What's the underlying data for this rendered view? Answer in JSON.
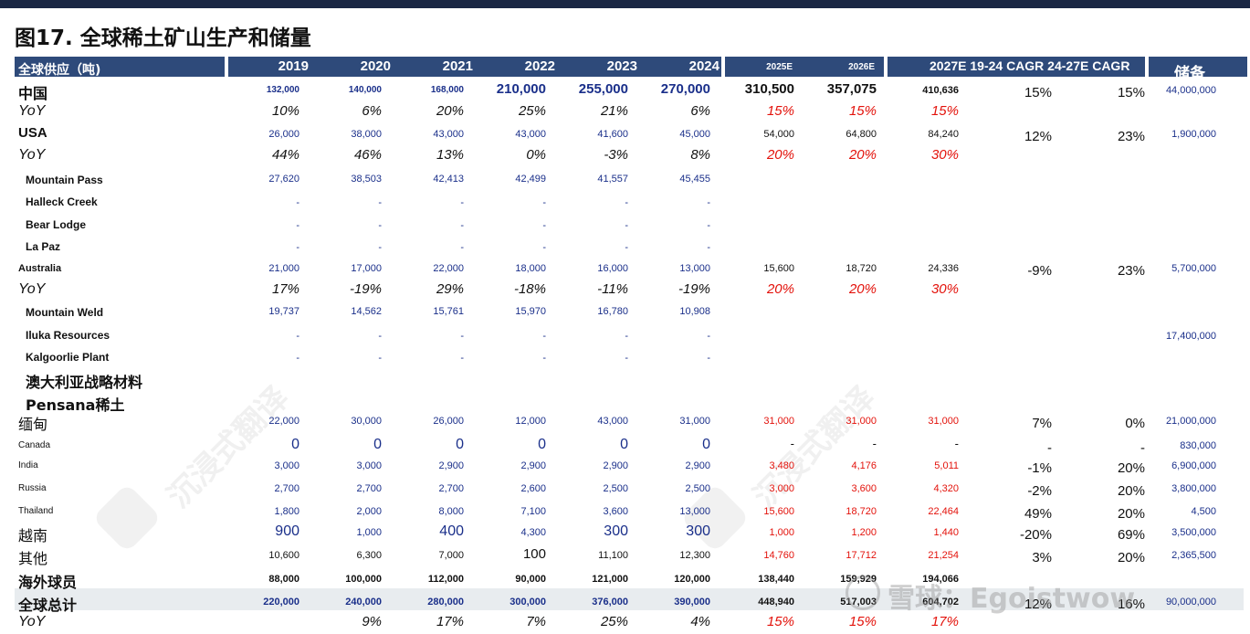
{
  "title": "图17. 全球稀土矿山生产和储量",
  "header": {
    "label": "全球供应（吨)",
    "years": [
      "2019",
      "2020",
      "2021",
      "2022",
      "2023",
      "2024"
    ],
    "est_years": [
      "2025E",
      "2026E"
    ],
    "cagr_label": "2027E 19-24 CAGR 24-27E CAGR",
    "reserves": "储备"
  },
  "rows": [
    {
      "label": "中国",
      "v": [
        "132,000",
        "140,000",
        "168,000",
        "210,000",
        "255,000",
        "270,000",
        "310,500",
        "357,075",
        "410,636",
        "15%",
        "15%",
        "44,000,000"
      ]
    },
    {
      "label": "YoY",
      "v": [
        "10%",
        "6%",
        "20%",
        "25%",
        "21%",
        "6%",
        "15%",
        "15%",
        "15%",
        "",
        "",
        ""
      ]
    },
    {
      "label": "USA",
      "v": [
        "26,000",
        "38,000",
        "43,000",
        "43,000",
        "41,600",
        "45,000",
        "54,000",
        "64,800",
        "84,240",
        "12%",
        "23%",
        "1,900,000"
      ]
    },
    {
      "label": "YoY",
      "v": [
        "44%",
        "46%",
        "13%",
        "0%",
        "-3%",
        "8%",
        "20%",
        "20%",
        "30%",
        "",
        "",
        ""
      ]
    },
    {
      "label": "Mountain Pass",
      "v": [
        "27,620",
        "38,503",
        "42,413",
        "42,499",
        "41,557",
        "45,455",
        "",
        "",
        "",
        "",
        "",
        ""
      ]
    },
    {
      "label": "Halleck Creek",
      "v": [
        "-",
        "-",
        "-",
        "-",
        "-",
        "-",
        "",
        "",
        "",
        "",
        "",
        ""
      ]
    },
    {
      "label": "Bear Lodge",
      "v": [
        "-",
        "-",
        "-",
        "-",
        "-",
        "-",
        "",
        "",
        "",
        "",
        "",
        ""
      ]
    },
    {
      "label": "La Paz",
      "v": [
        "-",
        "-",
        "-",
        "-",
        "-",
        "-",
        "",
        "",
        "",
        "",
        "",
        ""
      ]
    },
    {
      "label": "Australia",
      "v": [
        "21,000",
        "17,000",
        "22,000",
        "18,000",
        "16,000",
        "13,000",
        "15,600",
        "18,720",
        "24,336",
        "-9%",
        "23%",
        "5,700,000"
      ]
    },
    {
      "label": "YoY",
      "v": [
        "17%",
        "-19%",
        "29%",
        "-18%",
        "-11%",
        "-19%",
        "20%",
        "20%",
        "30%",
        "",
        "",
        ""
      ]
    },
    {
      "label": "Mountain Weld",
      "v": [
        "19,737",
        "14,562",
        "15,761",
        "15,970",
        "16,780",
        "10,908",
        "",
        "",
        "",
        "",
        "",
        ""
      ]
    },
    {
      "label": "Iluka Resources",
      "v": [
        "-",
        "-",
        "-",
        "-",
        "-",
        "-",
        "",
        "",
        "",
        "",
        "",
        "17,400,000"
      ]
    },
    {
      "label": "Kalgoorlie Plant",
      "v": [
        "-",
        "-",
        "-",
        "-",
        "-",
        "-",
        "",
        "",
        "",
        "",
        "",
        ""
      ]
    },
    {
      "label": "澳大利亚战略材料",
      "v": [
        "",
        "",
        "",
        "",
        "",
        "",
        "",
        "",
        "",
        "",
        "",
        ""
      ]
    },
    {
      "label": "Pensana稀土",
      "v": [
        "",
        "",
        "",
        "",
        "",
        "",
        "",
        "",
        "",
        "",
        "",
        ""
      ]
    },
    {
      "label": "缅甸",
      "v": [
        "22,000",
        "30,000",
        "26,000",
        "12,000",
        "43,000",
        "31,000",
        "31,000",
        "31,000",
        "31,000",
        "7%",
        "0%",
        "21,000,000"
      ]
    },
    {
      "label": "Canada",
      "v": [
        "0",
        "0",
        "0",
        "0",
        "0",
        "0",
        "-",
        "-",
        "-",
        "-",
        "-",
        "830,000"
      ]
    },
    {
      "label": "India",
      "v": [
        "3,000",
        "3,000",
        "2,900",
        "2,900",
        "2,900",
        "2,900",
        "3,480",
        "4,176",
        "5,011",
        "-1%",
        "20%",
        "6,900,000"
      ]
    },
    {
      "label": "Russia",
      "v": [
        "2,700",
        "2,700",
        "2,700",
        "2,600",
        "2,500",
        "2,500",
        "3,000",
        "3,600",
        "4,320",
        "-2%",
        "20%",
        "3,800,000"
      ]
    },
    {
      "label": "Thailand",
      "v": [
        "1,800",
        "2,000",
        "8,000",
        "7,100",
        "3,600",
        "13,000",
        "15,600",
        "18,720",
        "22,464",
        "49%",
        "20%",
        "4,500"
      ]
    },
    {
      "label": "越南",
      "v": [
        "900",
        "1,000",
        "400",
        "4,300",
        "300",
        "300",
        "1,000",
        "1,200",
        "1,440",
        "-20%",
        "69%",
        "3,500,000"
      ]
    },
    {
      "label": "其他",
      "v": [
        "10,600",
        "6,300",
        "7,000",
        "100",
        "11,100",
        "12,300",
        "14,760",
        "17,712",
        "21,254",
        "3%",
        "20%",
        "2,365,500"
      ]
    },
    {
      "label": "海外球员",
      "v": [
        "88,000",
        "100,000",
        "112,000",
        "90,000",
        "121,000",
        "120,000",
        "138,440",
        "159,929",
        "194,066",
        "",
        "",
        " "
      ]
    },
    {
      "label": "全球总计",
      "v": [
        "220,000",
        "240,000",
        "280,000",
        "300,000",
        "376,000",
        "390,000",
        "448,940",
        "517,003",
        "604,702",
        "12%",
        "16%",
        "90,000,000"
      ]
    },
    {
      "label": "YoY",
      "v": [
        "",
        "9%",
        "17%",
        "7%",
        "25%",
        "4%",
        "15%",
        "15%",
        "17%",
        "",
        "",
        ""
      ]
    }
  ],
  "watermark": {
    "text": "沉浸式翻译",
    "credit": "雪球：Egoistwow"
  }
}
